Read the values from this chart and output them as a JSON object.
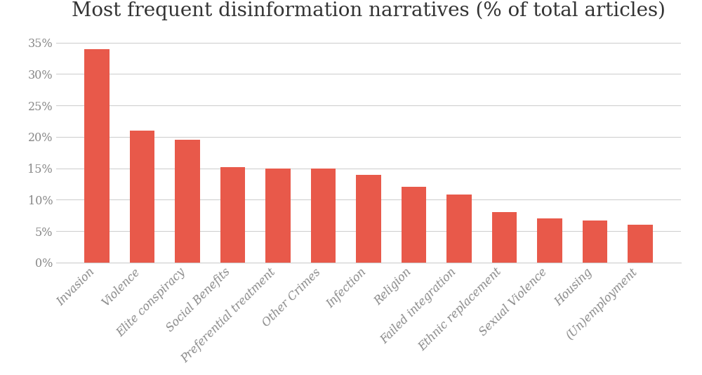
{
  "title": "Most frequent disinformation narratives (% of total articles)",
  "categories": [
    "Invasion",
    "Violence",
    "Elite conspiracy",
    "Social Benefits",
    "Preferential treatment",
    "Other Crimes",
    "Infection",
    "Religion",
    "Failed integration",
    "Ethnic replacement",
    "Sexual Violence",
    "Housing",
    "(Un)employment"
  ],
  "values": [
    34,
    21,
    19.5,
    15.2,
    15,
    15,
    14,
    12,
    10.8,
    8,
    7,
    6.7,
    6
  ],
  "bar_color": "#E8594A",
  "background_color": "#ffffff",
  "ylim": [
    0,
    37
  ],
  "yticks": [
    0,
    5,
    10,
    15,
    20,
    25,
    30,
    35
  ],
  "ytick_labels": [
    "0%",
    "5%",
    "10%",
    "15%",
    "20%",
    "25%",
    "30%",
    "35%"
  ],
  "title_fontsize": 20,
  "tick_label_fontsize": 11.5,
  "grid_color": "#d0d0d0",
  "axis_label_color": "#888888"
}
